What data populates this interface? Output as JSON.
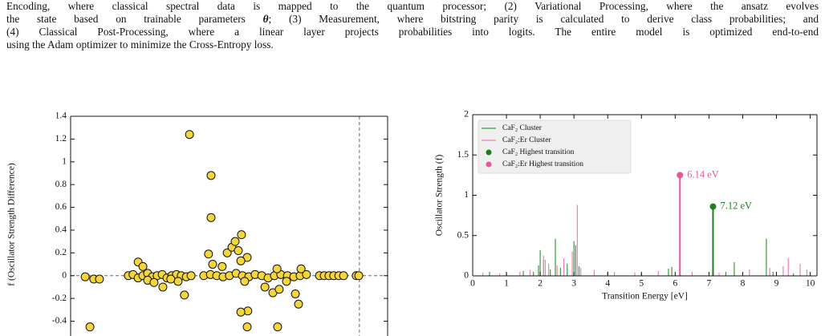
{
  "text": {
    "lines": [
      "Encoding, where classical spectral data is mapped to the quantum processor; (2) Variational Processing, where the ansatz evolves",
      [
        "the state based on trainable parameters ",
        "θ",
        "; (3) Measurement, where bitstring parity is calculated to derive class probabilities; and"
      ],
      "(4) Classical Post-Processing, where a linear layer projects probabilities into logits. The entire model is optimized end-to-end",
      "using the Adam optimizer to minimize the Cross-Entropy loss."
    ]
  },
  "chart_data": [
    {
      "type": "scatter",
      "ylabel": "f (Oscillator Strength Difference)",
      "xlim": [
        0,
        10
      ],
      "ylim": [
        -0.53,
        1.4
      ],
      "yticks": [
        1.4,
        1.2,
        1,
        0.8,
        0.6,
        0.4,
        0.2,
        0,
        -0.2,
        -0.4
      ],
      "hline": 0,
      "vline": 9.11,
      "series": [
        {
          "color": "#f5d53c",
          "x": [
            0.46,
            0.61,
            0.73,
            0.91,
            1.82,
            1.97,
            2.13,
            2.28,
            2.43,
            2.58,
            2.73,
            2.89,
            3.04,
            3.19,
            3.34,
            3.49,
            3.65,
            3.8,
            4.2,
            4.41,
            4.61,
            4.81,
            5.01,
            5.22,
            5.42,
            5.62,
            5.82,
            6.03,
            6.23,
            6.43,
            6.63,
            6.84,
            7.04,
            7.24,
            7.44,
            7.85,
            8.0,
            8.15,
            8.3,
            8.46,
            8.61,
            9.01,
            9.09,
            2.13,
            2.28,
            2.43,
            2.63,
            2.91,
            3.59,
            3.75,
            4.43,
            4.43,
            4.35,
            4.48,
            4.94,
            5.09,
            5.19,
            5.39,
            5.29,
            5.57,
            5.37,
            4.78,
            5.49,
            5.59,
            5.37,
            5.57,
            6.53,
            6.13,
            6.38,
            6.58,
            7.09,
            7.19,
            6.81,
            7.27,
            6.51,
            3.39,
            3.16
          ],
          "values": [
            -0.01,
            -0.45,
            -0.03,
            -0.03,
            0,
            0.01,
            -0.02,
            0,
            0.02,
            -0.01,
            0,
            0.01,
            -0.02,
            0,
            0.01,
            0,
            -0.01,
            0,
            0,
            0.01,
            0,
            -0.01,
            0,
            0.02,
            0,
            -0.01,
            0.01,
            0,
            -0.02,
            0,
            0.01,
            0,
            -0.01,
            0,
            0.01,
            0,
            0,
            0,
            0,
            0,
            0,
            0,
            0,
            0.12,
            0.08,
            -0.04,
            -0.06,
            -0.1,
            -0.17,
            1.24,
            0.88,
            0.51,
            0.19,
            0.1,
            0.2,
            0.25,
            0.3,
            0.36,
            0.22,
            0.16,
            0.13,
            0.08,
            -0.05,
            -0.31,
            -0.32,
            -0.45,
            -0.45,
            -0.1,
            -0.15,
            -0.12,
            -0.16,
            -0.25,
            -0.05,
            0.06,
            0.06,
            -0.05,
            -0.03
          ]
        }
      ]
    },
    {
      "type": "stem",
      "xlabel": "Transition Energy [eV]",
      "ylabel": "Oscillator Strength (f)",
      "xlim": [
        0,
        10.2
      ],
      "ylim": [
        0,
        2
      ],
      "xticks": [
        0,
        1,
        2,
        3,
        4,
        5,
        6,
        7,
        8,
        9,
        10
      ],
      "yticks": [
        0,
        0.5,
        1,
        1.5,
        2
      ],
      "legend": "upper left",
      "series": [
        {
          "name": "CaF₂ Cluster",
          "style": "stem",
          "color": "#3a9a3a",
          "x": [
            0.5,
            1.0,
            1.5,
            1.8,
            1.95,
            2.0,
            2.1,
            2.3,
            2.45,
            2.6,
            2.8,
            3.0,
            3.05,
            3.15,
            4.0,
            5.0,
            5.8,
            5.9,
            7.12,
            7.5,
            7.75,
            8.7,
            8.9,
            9.5
          ],
          "values": [
            0.05,
            0.03,
            0.06,
            0.05,
            0.13,
            0.32,
            0.2,
            0.08,
            0.46,
            0.1,
            0.15,
            0.43,
            0.38,
            0.12,
            0.05,
            0.03,
            0.09,
            0.11,
            0.86,
            0.05,
            0.17,
            0.46,
            0.05,
            0.03
          ]
        },
        {
          "name": "CaF₂:Er Cluster",
          "style": "stem",
          "color": "#ee7fb5",
          "x": [
            0.3,
            0.8,
            1.4,
            1.7,
            2.1,
            2.15,
            2.25,
            2.5,
            2.7,
            2.95,
            3.1,
            3.2,
            3.6,
            4.2,
            4.8,
            5.5,
            6.14,
            6.5,
            7.3,
            8.2,
            8.8,
            9.2,
            9.35,
            9.7,
            9.9
          ],
          "values": [
            0.04,
            0.03,
            0.05,
            0.07,
            0.25,
            0.2,
            0.15,
            0.13,
            0.22,
            0.3,
            0.88,
            0.1,
            0.07,
            0.05,
            0.04,
            0.06,
            1.25,
            0.05,
            0.04,
            0.08,
            0.1,
            0.12,
            0.22,
            0.15,
            0.08
          ]
        },
        {
          "name": "CaF₂ Highest transition",
          "style": "marker",
          "color": "#1e7d1e",
          "x": [
            7.12
          ],
          "values": [
            0.86
          ],
          "x_labels": [
            "7.12 eV"
          ]
        },
        {
          "name": "CaF₂:Er Highest transition",
          "style": "marker",
          "color": "#e8559b",
          "x": [
            6.14
          ],
          "values": [
            1.25
          ],
          "x_labels": [
            "6.14 eV"
          ]
        }
      ]
    }
  ]
}
